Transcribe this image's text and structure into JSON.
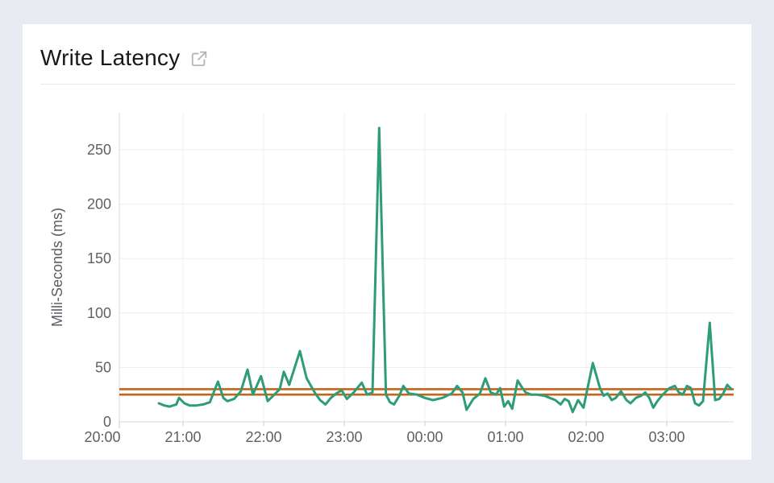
{
  "panel": {
    "title": "Write Latency"
  },
  "chart_data": {
    "type": "line",
    "title": "Write Latency",
    "xlabel": "",
    "ylabel": "Milli-Seconds (ms)",
    "x_tick_labels": [
      "20:00",
      "21:00",
      "22:00",
      "23:00",
      "00:00",
      "01:00",
      "02:00",
      "03:00"
    ],
    "y_tick_labels": [
      0,
      50,
      100,
      150,
      200,
      250
    ],
    "ylim": [
      0,
      284
    ],
    "x_range_start": "20:13",
    "x_range_end": "03:50",
    "grid": true,
    "legend": "none",
    "colors": {
      "line": "#2e9c77",
      "threshold": "#c4641d",
      "grid": "#ededed",
      "vgrid": "#f1f1f1",
      "axis": "#d8d8d8",
      "tick": "#c9c9c9",
      "tick_text": "#5d6166"
    },
    "thresholds": [
      {
        "name": "upper-threshold",
        "value": 30
      },
      {
        "name": "lower-threshold",
        "value": 25
      }
    ],
    "series": [
      {
        "name": "Write Latency",
        "color": "#2e9c77",
        "points": [
          [
            "20:42",
            17
          ],
          [
            "20:46",
            15
          ],
          [
            "20:50",
            14
          ],
          [
            "20:55",
            16
          ],
          [
            "20:57",
            22
          ],
          [
            "21:01",
            17
          ],
          [
            "21:05",
            15
          ],
          [
            "21:10",
            15
          ],
          [
            "21:15",
            16
          ],
          [
            "21:20",
            18
          ],
          [
            "21:26",
            37
          ],
          [
            "21:30",
            22
          ],
          [
            "21:33",
            19
          ],
          [
            "21:38",
            21
          ],
          [
            "21:43",
            28
          ],
          [
            "21:48",
            48
          ],
          [
            "21:52",
            25
          ],
          [
            "21:58",
            42
          ],
          [
            "22:03",
            19
          ],
          [
            "22:08",
            25
          ],
          [
            "22:12",
            30
          ],
          [
            "22:15",
            46
          ],
          [
            "22:19",
            34
          ],
          [
            "22:27",
            65
          ],
          [
            "22:32",
            40
          ],
          [
            "22:38",
            27
          ],
          [
            "22:42",
            20
          ],
          [
            "22:46",
            16
          ],
          [
            "22:50",
            22
          ],
          [
            "22:54",
            26
          ],
          [
            "22:58",
            29
          ],
          [
            "23:02",
            21
          ],
          [
            "23:07",
            27
          ],
          [
            "23:13",
            36
          ],
          [
            "23:17",
            25
          ],
          [
            "23:21",
            27
          ],
          [
            "23:26",
            270
          ],
          [
            "23:31",
            25
          ],
          [
            "23:34",
            18
          ],
          [
            "23:37",
            16
          ],
          [
            "23:41",
            24
          ],
          [
            "23:44",
            33
          ],
          [
            "23:48",
            26
          ],
          [
            "23:54",
            25
          ],
          [
            "00:00",
            22
          ],
          [
            "00:06",
            20
          ],
          [
            "00:13",
            22
          ],
          [
            "00:20",
            26
          ],
          [
            "00:24",
            33
          ],
          [
            "00:28",
            27
          ],
          [
            "00:31",
            11
          ],
          [
            "00:36",
            21
          ],
          [
            "00:41",
            26
          ],
          [
            "00:45",
            40
          ],
          [
            "00:49",
            27
          ],
          [
            "00:53",
            25
          ],
          [
            "00:56",
            31
          ],
          [
            "00:59",
            14
          ],
          [
            "01:02",
            19
          ],
          [
            "01:05",
            12
          ],
          [
            "01:09",
            38
          ],
          [
            "01:12",
            32
          ],
          [
            "01:15",
            27
          ],
          [
            "01:19",
            25
          ],
          [
            "01:23",
            25
          ],
          [
            "01:29",
            24
          ],
          [
            "01:33",
            22
          ],
          [
            "01:37",
            20
          ],
          [
            "01:41",
            16
          ],
          [
            "01:44",
            21
          ],
          [
            "01:47",
            19
          ],
          [
            "01:50",
            9
          ],
          [
            "01:54",
            20
          ],
          [
            "01:58",
            13
          ],
          [
            "02:05",
            54
          ],
          [
            "02:10",
            32
          ],
          [
            "02:13",
            24
          ],
          [
            "02:16",
            26
          ],
          [
            "02:19",
            20
          ],
          [
            "02:22",
            22
          ],
          [
            "02:26",
            28
          ],
          [
            "02:30",
            20
          ],
          [
            "02:33",
            17
          ],
          [
            "02:37",
            22
          ],
          [
            "02:41",
            24
          ],
          [
            "02:44",
            27
          ],
          [
            "02:47",
            22
          ],
          [
            "02:50",
            13
          ],
          [
            "02:53",
            19
          ],
          [
            "02:57",
            25
          ],
          [
            "03:02",
            31
          ],
          [
            "03:06",
            33
          ],
          [
            "03:09",
            27
          ],
          [
            "03:12",
            25
          ],
          [
            "03:15",
            33
          ],
          [
            "03:18",
            31
          ],
          [
            "03:21",
            17
          ],
          [
            "03:24",
            15
          ],
          [
            "03:27",
            19
          ],
          [
            "03:32",
            91
          ],
          [
            "03:36",
            20
          ],
          [
            "03:39",
            21
          ],
          [
            "03:42",
            26
          ],
          [
            "03:45",
            34
          ],
          [
            "03:48",
            30
          ]
        ]
      }
    ]
  }
}
